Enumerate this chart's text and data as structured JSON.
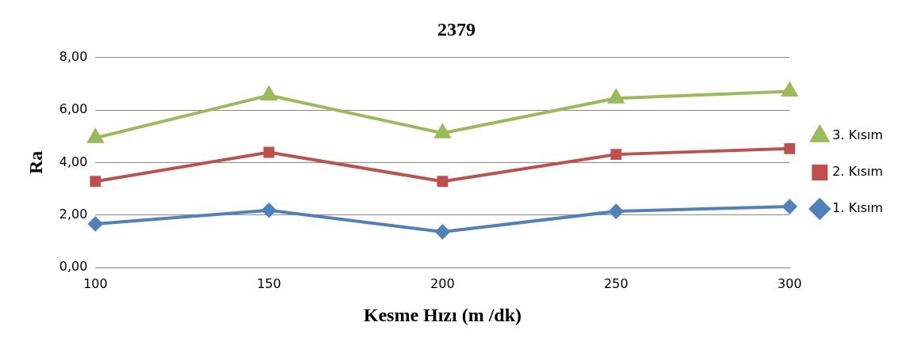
{
  "chart_data": {
    "type": "line",
    "title": "2379",
    "xlabel": "Kesme Hızı (m /dk)",
    "ylabel": "Ra",
    "categories": [
      "100",
      "150",
      "200",
      "250",
      "300"
    ],
    "series": [
      {
        "name": "1. Kısım",
        "color": "#4f81bd",
        "marker": "diamond",
        "values": [
          1.66,
          2.18,
          1.36,
          2.14,
          2.32
        ]
      },
      {
        "name": "2. Kısım",
        "color": "#c0504d",
        "marker": "square",
        "values": [
          3.28,
          4.39,
          3.28,
          4.31,
          4.53
        ]
      },
      {
        "name": "3. Kısım",
        "color": "#9bbb59",
        "marker": "triangle",
        "values": [
          4.94,
          6.56,
          5.12,
          6.45,
          6.71
        ]
      }
    ],
    "ylim": [
      0,
      8
    ],
    "yticks": [
      {
        "value": 0,
        "label": "0,00"
      },
      {
        "value": 2,
        "label": "2,00"
      },
      {
        "value": 4,
        "label": "4,00"
      },
      {
        "value": 6,
        "label": "6,00"
      },
      {
        "value": 8,
        "label": "8,00"
      }
    ],
    "grid": "y",
    "legend": "right",
    "line_style": "solid"
  }
}
